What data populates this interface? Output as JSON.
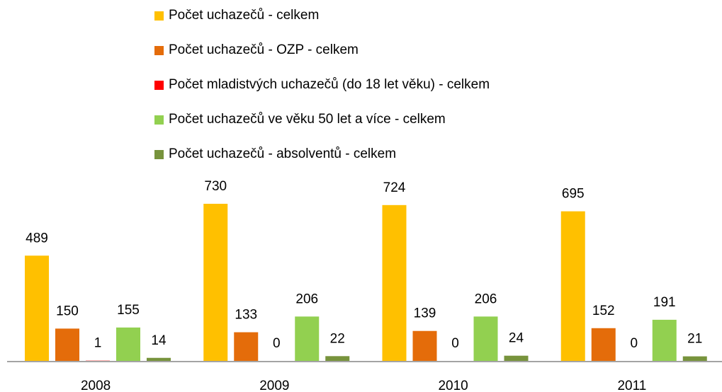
{
  "chart_data": {
    "type": "bar",
    "categories": [
      "2008",
      "2009",
      "2010",
      "2011"
    ],
    "series": [
      {
        "name": "Počet uchazečů - celkem",
        "color": "#ffc000",
        "values": [
          489,
          730,
          724,
          695
        ]
      },
      {
        "name": "Počet uchazečů - OZP - celkem",
        "color": "#e46c0a",
        "values": [
          150,
          133,
          139,
          152
        ]
      },
      {
        "name": "Počet mladistvých uchazečů (do 18 let věku) - celkem",
        "color": "#ff0000",
        "values": [
          1,
          0,
          0,
          0
        ]
      },
      {
        "name": "Počet uchazečů ve věku 50 let a více - celkem",
        "color": "#92d050",
        "values": [
          155,
          206,
          206,
          191
        ]
      },
      {
        "name": "Počet uchazečů - absolventů - celkem",
        "color": "#77933c",
        "values": [
          14,
          22,
          24,
          21
        ]
      }
    ],
    "legend": "top"
  }
}
